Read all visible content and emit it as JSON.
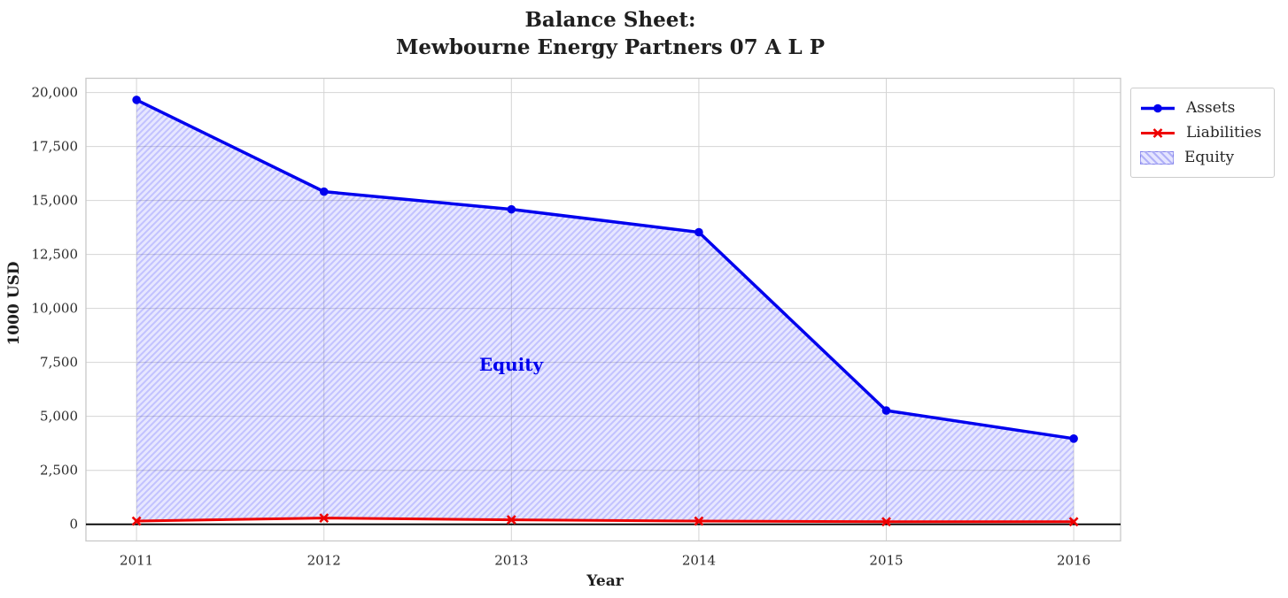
{
  "title": {
    "line1": "Balance Sheet:",
    "line2": "Mewbourne Energy Partners 07 A L P"
  },
  "chart_data": {
    "type": "line",
    "title": "Balance Sheet: Mewbourne Energy Partners 07 A L P",
    "xlabel": "Year",
    "ylabel": "1000 USD",
    "x": [
      2011,
      2012,
      2013,
      2014,
      2015,
      2016
    ],
    "xtick_labels": [
      "2011",
      "2012",
      "2013",
      "2014",
      "2015",
      "2016"
    ],
    "yticks": [
      0,
      2500,
      5000,
      7500,
      10000,
      12500,
      15000,
      17500,
      20000
    ],
    "ytick_labels": [
      "0",
      "2,500",
      "5,000",
      "7,500",
      "10,000",
      "12,500",
      "15,000",
      "17,500",
      "20,000"
    ],
    "xlim": [
      2010.73,
      2016.25
    ],
    "ylim": [
      -770,
      20660
    ],
    "grid": true,
    "zero_line": 0,
    "series": [
      {
        "name": "Assets",
        "color": "#0000ee",
        "marker": "circle",
        "values": [
          19660,
          15410,
          14590,
          13530,
          5270,
          3970
        ]
      },
      {
        "name": "Liabilities",
        "color": "#ee0000",
        "marker": "x",
        "values": [
          150,
          290,
          210,
          150,
          120,
          120
        ]
      }
    ],
    "area": {
      "name": "Equity",
      "between": [
        "Liabilities",
        "Assets"
      ],
      "values": [
        19510,
        15120,
        14380,
        13380,
        5150,
        3850
      ],
      "fill_color": "#0000ff",
      "fill_alpha": 0.1,
      "hatch": "//",
      "annotation": {
        "text": "Equity",
        "x": 2013,
        "y": 7450,
        "color": "#0000ee"
      }
    },
    "legend": {
      "position": "outside upper right",
      "entries": [
        {
          "label": "Assets"
        },
        {
          "label": "Liabilities"
        },
        {
          "label": "Equity"
        }
      ]
    }
  }
}
